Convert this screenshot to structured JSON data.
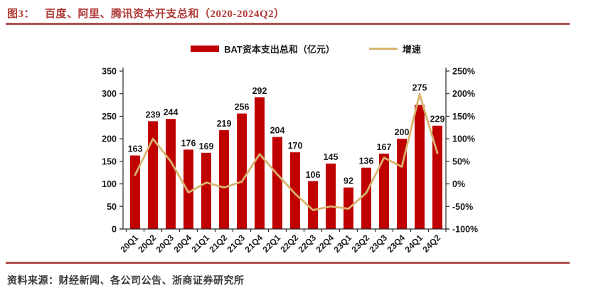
{
  "figure": {
    "label": "图3：",
    "title": "百度、阿里、腾讯资本开支总和（2020-2024Q2）"
  },
  "chart_data": {
    "type": "bar+line",
    "categories": [
      "20Q1",
      "20Q2",
      "20Q3",
      "20Q4",
      "21Q1",
      "21Q2",
      "21Q3",
      "21Q4",
      "22Q1",
      "22Q2",
      "22Q3",
      "22Q4",
      "23Q1",
      "23Q2",
      "23Q3",
      "23Q4",
      "24Q1",
      "24Q2"
    ],
    "series": [
      {
        "name": "BAT资本支出总和（亿元）",
        "type": "bar",
        "axis": "left",
        "values": [
          163,
          239,
          244,
          176,
          169,
          219,
          256,
          292,
          204,
          170,
          106,
          145,
          92,
          136,
          167,
          200,
          275,
          229
        ]
      },
      {
        "name": "增速",
        "type": "line",
        "axis": "right",
        "unit": "%",
        "values": [
          20,
          100,
          50,
          -19,
          3,
          -8,
          5,
          66,
          21,
          -22,
          -58,
          -50,
          -55,
          -20,
          58,
          38,
          199,
          68
        ]
      }
    ],
    "left_axis": {
      "min": 0,
      "max": 350,
      "step": 50,
      "labels": [
        "350",
        "300",
        "250",
        "200",
        "150",
        "100",
        "50",
        "0"
      ]
    },
    "right_axis": {
      "min": -100,
      "max": 250,
      "step": 50,
      "labels": [
        "250%",
        "200%",
        "150%",
        "100%",
        "50%",
        "0%",
        "-50%",
        "-100%"
      ]
    },
    "bar_labels_visible": true,
    "legend_position": "top",
    "grid": false
  },
  "footer": {
    "source_label": "资料来源：",
    "source_text": "财经新闻、各公司公告、浙商证券研究所"
  },
  "colors": {
    "title": "#AF3A36",
    "rule": "#A9534E",
    "bar": "#C00000",
    "line": "#D8B470",
    "axis": "#2b2b2b",
    "text": "#1A1A1A"
  }
}
